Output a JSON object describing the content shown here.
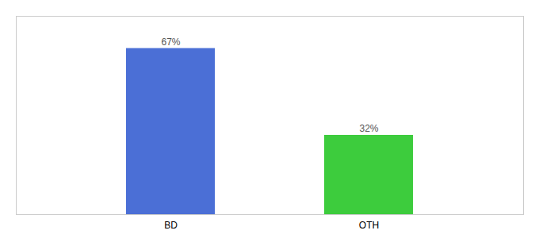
{
  "chart_data": {
    "type": "bar",
    "categories": [
      "BD",
      "OTH"
    ],
    "values": [
      67,
      32
    ],
    "value_labels": [
      "67%",
      "32%"
    ],
    "colors": [
      "#4b6fd6",
      "#3dcc3d"
    ],
    "ylim": [
      0,
      80
    ],
    "tick_labels": "x",
    "data_labels": true,
    "grid": false
  }
}
